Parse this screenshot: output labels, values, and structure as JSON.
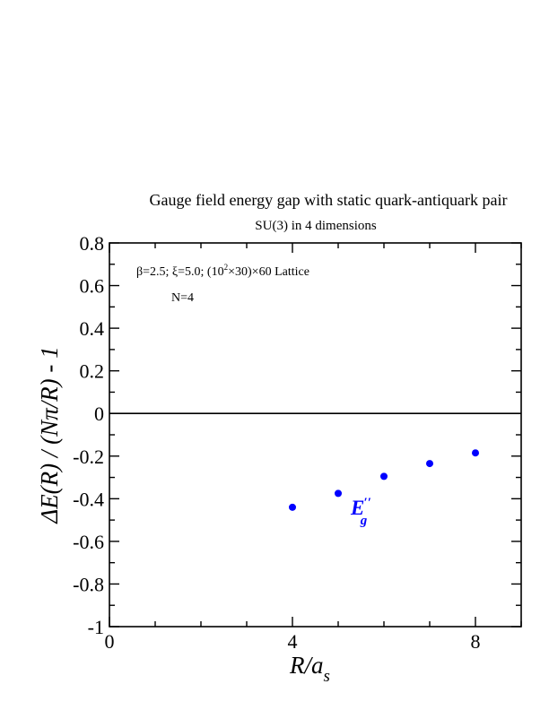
{
  "chart_data": {
    "type": "scatter",
    "title": "Gauge field energy gap with static quark-antiquark pair",
    "subtitle": "SU(3) in 4 dimensions",
    "xlabel": "R/a",
    "xlabel_sub": "s",
    "ylabel": "ΔE(R) / (Nπ/R) - 1",
    "xlim": [
      0,
      9
    ],
    "ylim": [
      -1,
      0.8
    ],
    "x_ticks": [
      0,
      4,
      8
    ],
    "y_ticks": [
      0.8,
      0.6,
      0.4,
      0.2,
      0,
      -0.2,
      -0.4,
      -0.6,
      -0.8,
      -1
    ],
    "x_tick_labels": [
      "0",
      "4",
      "8"
    ],
    "y_tick_labels": [
      "0.8",
      "0.6",
      "0.4",
      "0.2",
      "0",
      "-0.2",
      "-0.4",
      "-0.6",
      "-0.8",
      "-1"
    ],
    "grid": false,
    "reference_line_y": 0,
    "annotations": {
      "params_line1": "β=2.5; ξ=5.0; (10",
      "params_sup": "2",
      "params_line2": "×30)×60 Lattice",
      "n_label": "N=4"
    },
    "series": [
      {
        "name_main": "E",
        "name_sup": "′′",
        "name_sub": "g",
        "color": "#0000ff",
        "x": [
          4,
          5,
          6,
          7,
          8
        ],
        "y": [
          -0.44,
          -0.375,
          -0.295,
          -0.235,
          -0.185
        ]
      }
    ]
  }
}
